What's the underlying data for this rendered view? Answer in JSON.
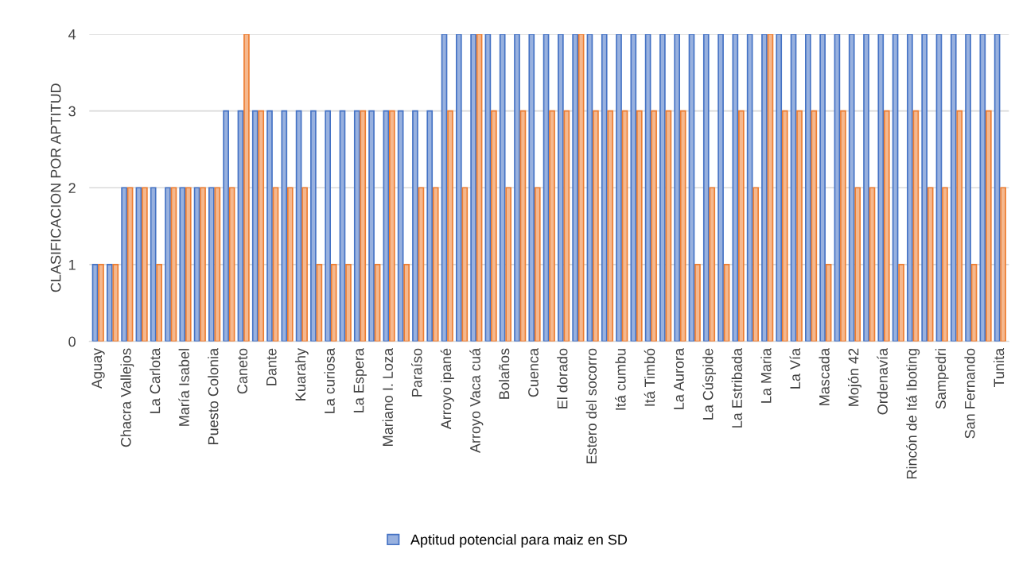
{
  "chart_data": {
    "type": "bar",
    "ylabel": "CLASIFICACION POR APTITUD",
    "categories": [
      "Aguay",
      null,
      "Chacra Vallejos",
      null,
      "La Carlota",
      null,
      "María Isabel",
      null,
      "Puesto Colonia",
      null,
      "Caneto",
      null,
      "Dante",
      null,
      "Kuarahy",
      null,
      "La curiosa",
      null,
      "La Espera",
      null,
      "Mariano I. Loza",
      null,
      "Paraíso",
      null,
      "Arroyo ipané",
      null,
      "Arroyo Vaca cuá",
      null,
      "Bolaños",
      null,
      "Cuenca",
      null,
      "El dorado",
      null,
      "Estero del socorro",
      null,
      "Itá cumbu",
      null,
      "Itá Timbó",
      null,
      "La Aurora",
      null,
      "La Cúspide",
      null,
      "La Estribada",
      null,
      "La Maria",
      null,
      "La Vía",
      null,
      "Mascada",
      null,
      "Mojón 42",
      null,
      "Ordenavía",
      null,
      "Rincón de Itá Iboting",
      null,
      "Sampedri",
      null,
      "San Fernando",
      null,
      "Tunita"
    ],
    "series": [
      {
        "name": "Aptitud potencial para maiz en SD",
        "color": "#4472c4",
        "values": [
          1,
          1,
          2,
          2,
          2,
          2,
          2,
          2,
          2,
          3,
          3,
          3,
          3,
          3,
          3,
          3,
          3,
          3,
          3,
          3,
          3,
          3,
          3,
          3,
          4,
          4,
          4,
          4,
          4,
          4,
          4,
          4,
          4,
          4,
          4,
          4,
          4,
          4,
          4,
          4,
          4,
          4,
          4,
          4,
          4,
          4,
          4,
          4,
          4,
          4,
          4,
          4,
          4,
          4,
          4,
          4,
          4,
          4,
          4,
          4,
          4,
          4,
          4
        ]
      },
      {
        "color": "#ed7d31",
        "values": [
          1,
          1,
          2,
          2,
          1,
          2,
          2,
          2,
          2,
          2,
          4,
          3,
          2,
          2,
          2,
          1,
          1,
          1,
          3,
          1,
          3,
          1,
          2,
          2,
          3,
          2,
          4,
          3,
          2,
          3,
          2,
          3,
          3,
          4,
          3,
          3,
          3,
          3,
          3,
          3,
          3,
          1,
          2,
          1,
          3,
          2,
          4,
          3,
          3,
          3,
          1,
          3,
          2,
          2,
          3,
          1,
          3,
          2,
          2,
          3,
          1,
          3,
          2
        ]
      }
    ],
    "ylim": [
      0,
      4
    ],
    "yticks": [
      0,
      1,
      2,
      3,
      4
    ],
    "grid": "y",
    "legend": "bottom"
  }
}
